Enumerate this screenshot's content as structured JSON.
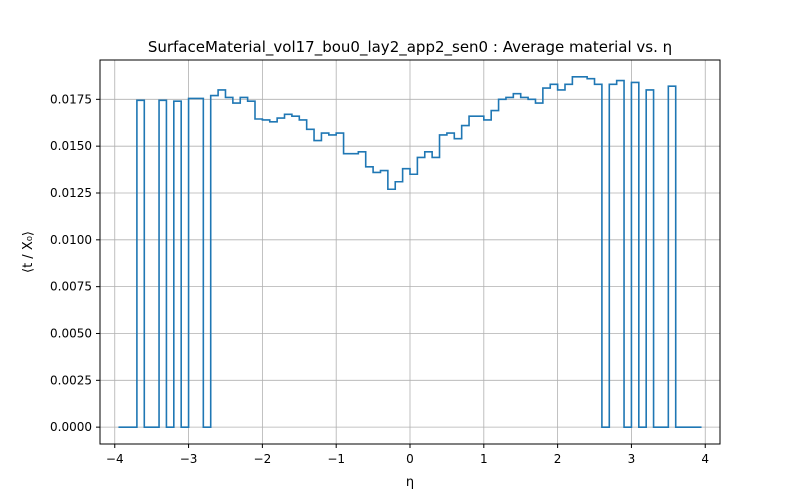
{
  "chart_data": {
    "type": "line",
    "title": "SurfaceMaterial_vol17_bou0_lay2_app2_sen0 : Average material vs. η",
    "xlabel": "η",
    "ylabel": "⟨t / X₀⟩",
    "xlim": [
      -4.2,
      4.2
    ],
    "ylim": [
      -0.0009,
      0.0196
    ],
    "grid": true,
    "xticks": [
      -4,
      -3,
      -2,
      -1,
      0,
      1,
      2,
      3,
      4
    ],
    "xtick_labels": [
      "−4",
      "−3",
      "−2",
      "−1",
      "0",
      "1",
      "2",
      "3",
      "4"
    ],
    "yticks": [
      0,
      0.0025,
      0.005,
      0.0075,
      0.01,
      0.0125,
      0.015,
      0.0175
    ],
    "ytick_labels": [
      "0.0000",
      "0.0025",
      "0.0050",
      "0.0075",
      "0.0100",
      "0.0125",
      "0.0150",
      "0.0175"
    ],
    "series": [
      {
        "color": "#1f77b4",
        "step": "mid",
        "x": [
          -3.95,
          -3.85,
          -3.75,
          -3.65,
          -3.55,
          -3.45,
          -3.35,
          -3.25,
          -3.15,
          -3.05,
          -2.95,
          -2.85,
          -2.75,
          -2.65,
          -2.55,
          -2.45,
          -2.35,
          -2.25,
          -2.15,
          -2.05,
          -1.95,
          -1.85,
          -1.75,
          -1.65,
          -1.55,
          -1.45,
          -1.35,
          -1.25,
          -1.15,
          -1.05,
          -0.95,
          -0.85,
          -0.75,
          -0.65,
          -0.55,
          -0.45,
          -0.35,
          -0.25,
          -0.15,
          -0.05,
          0.05,
          0.15,
          0.25,
          0.35,
          0.45,
          0.55,
          0.65,
          0.75,
          0.85,
          0.95,
          1.05,
          1.15,
          1.25,
          1.35,
          1.45,
          1.55,
          1.65,
          1.75,
          1.85,
          1.95,
          2.05,
          2.15,
          2.25,
          2.35,
          2.45,
          2.55,
          2.65,
          2.75,
          2.85,
          2.95,
          3.05,
          3.15,
          3.25,
          3.35,
          3.45,
          3.55,
          3.65,
          3.75,
          3.85,
          3.95
        ],
        "y": [
          0,
          0,
          0,
          0.01745,
          0,
          0,
          0.01745,
          0,
          0.0174,
          0,
          0.01755,
          0.01755,
          0,
          0.0177,
          0.018,
          0.0176,
          0.0173,
          0.0176,
          0.0174,
          0.01645,
          0.0164,
          0.0163,
          0.0165,
          0.0167,
          0.0166,
          0.0164,
          0.0159,
          0.0153,
          0.0157,
          0.0156,
          0.0157,
          0.0146,
          0.0146,
          0.0147,
          0.0139,
          0.0136,
          0.0137,
          0.0127,
          0.0131,
          0.0138,
          0.0135,
          0.0144,
          0.0147,
          0.0144,
          0.0156,
          0.0157,
          0.0154,
          0.0161,
          0.0166,
          0.0166,
          0.0164,
          0.0169,
          0.0175,
          0.0176,
          0.0178,
          0.0176,
          0.0175,
          0.0173,
          0.0181,
          0.0183,
          0.018,
          0.0183,
          0.0187,
          0.0187,
          0.0186,
          0.0183,
          0,
          0.0183,
          0.0185,
          0,
          0.0184,
          0,
          0.018,
          0,
          0,
          0.0182,
          0,
          0,
          0,
          0
        ]
      }
    ]
  }
}
